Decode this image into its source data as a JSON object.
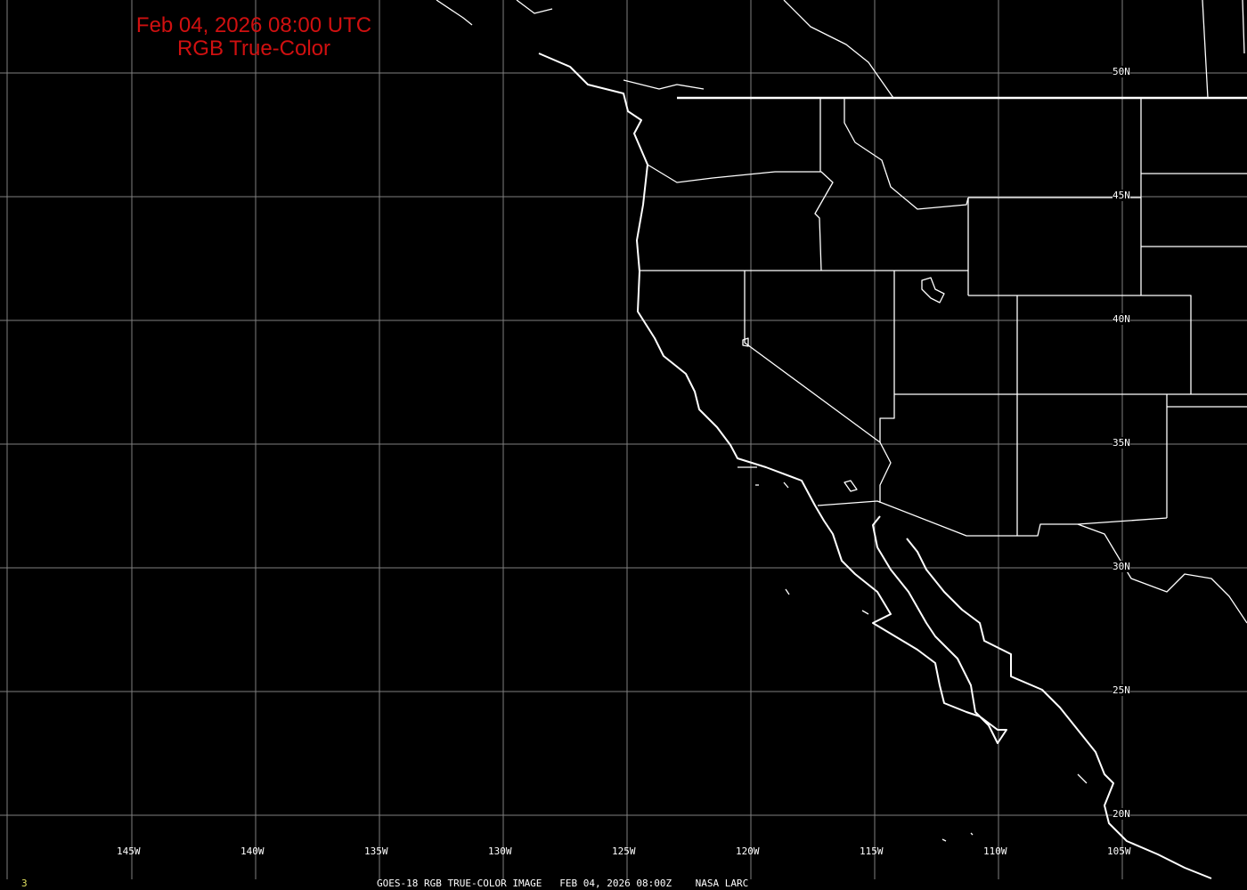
{
  "title": {
    "line1": "Feb 04, 2026 08:00 UTC",
    "line2": "RGB True-Color",
    "color": "#d01010"
  },
  "longitude_labels": [
    "145W",
    "140W",
    "135W",
    "130W",
    "125W",
    "120W",
    "115W",
    "110W",
    "105W"
  ],
  "latitude_labels": [
    "50N",
    "45N",
    "40N",
    "35N",
    "30N",
    "25N",
    "20N"
  ],
  "footer": {
    "frame": "3",
    "caption": "GOES-18 RGB TRUE-COLOR IMAGE   FEB 04, 2026 08:00Z    NASA LARC",
    "frame_color": "#e0e060"
  },
  "colors": {
    "background": "#000000",
    "grid": "#808080",
    "boundaries": "#ffffff"
  }
}
